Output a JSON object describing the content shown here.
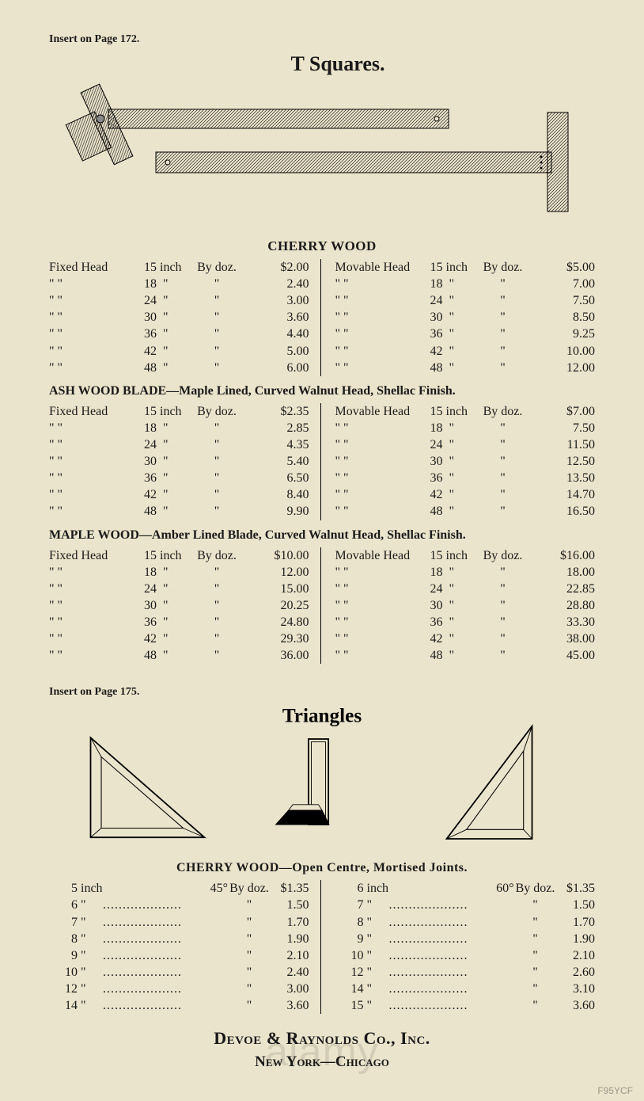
{
  "page_bg": "#ebe4cc",
  "text_color": "#1a1a1a",
  "insert1": "Insert on Page 172.",
  "insert2": "Insert on Page 175.",
  "title1": "T Squares.",
  "title2": "Triangles",
  "tsquare_heading_cherry": "CHERRY WOOD",
  "ash_heading": "ASH WOOD BLADE—Maple Lined, Curved Walnut Head, Shellac Finish.",
  "maple_heading": "MAPLE WOOD—Amber Lined Blade, Curved Walnut Head, Shellac Finish.",
  "triangles_heading": "CHERRY WOOD—Open Centre, Mortised Joints.",
  "company": "Devoe & Raynolds Co., Inc.",
  "city": "New York—Chicago",
  "watermark": "alamy",
  "wm_id": "F95YCF",
  "sizes": [
    "15",
    "18",
    "24",
    "30",
    "36",
    "42",
    "48"
  ],
  "fixed_label": "Fixed Head",
  "movable_label": "Movable Head",
  "inch_label": "inch",
  "bydoz_label": "By doz.",
  "cherry": {
    "fixed": [
      "$2.00",
      "2.40",
      "3.00",
      "3.60",
      "4.40",
      "5.00",
      "6.00"
    ],
    "movable": [
      "$5.00",
      "7.00",
      "7.50",
      "8.50",
      "9.25",
      "10.00",
      "12.00"
    ]
  },
  "ash": {
    "fixed": [
      "$2.35",
      "2.85",
      "4.35",
      "5.40",
      "6.50",
      "8.40",
      "9.90"
    ],
    "movable": [
      "$7.00",
      "7.50",
      "11.50",
      "12.50",
      "13.50",
      "14.70",
      "16.50"
    ]
  },
  "maple": {
    "fixed": [
      "$10.00",
      "12.00",
      "15.00",
      "20.25",
      "24.80",
      "29.30",
      "36.00"
    ],
    "movable": [
      "$16.00",
      "18.00",
      "22.85",
      "28.80",
      "33.30",
      "38.00",
      "45.00"
    ]
  },
  "tri45": {
    "deg": "45°",
    "sizes": [
      "5",
      "6",
      "7",
      "8",
      "9",
      "10",
      "12",
      "14"
    ],
    "prices": [
      "$1.35",
      "1.50",
      "1.70",
      "1.90",
      "2.10",
      "2.40",
      "3.00",
      "3.60"
    ]
  },
  "tri60": {
    "deg": "60°",
    "sizes": [
      "6",
      "7",
      "8",
      "9",
      "10",
      "12",
      "14",
      "15"
    ],
    "prices": [
      "$1.35",
      "1.50",
      "1.70",
      "1.90",
      "2.10",
      "2.60",
      "3.10",
      "3.60"
    ]
  }
}
